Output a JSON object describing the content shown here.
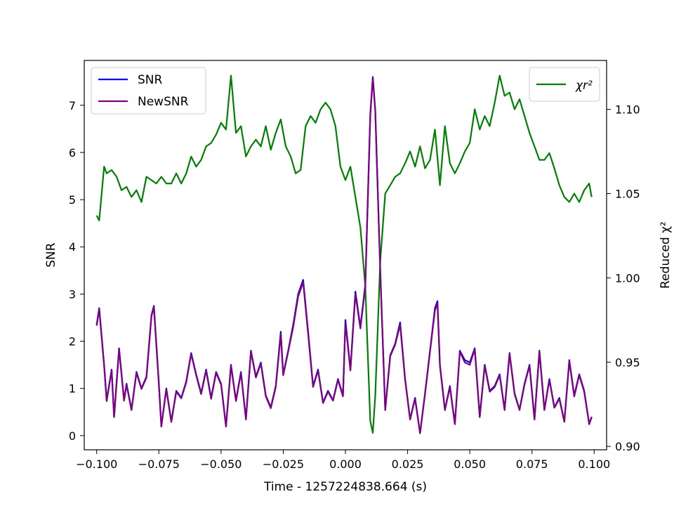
{
  "chart_data": {
    "type": "line",
    "xlabel": "Time - 1257224838.664 (s)",
    "ylabel": "SNR",
    "y2label": "Reduced χ²",
    "xlim": [
      -0.105,
      0.105
    ],
    "ylim": [
      -0.3,
      7.95
    ],
    "y2lim": [
      0.898,
      1.129
    ],
    "x_ticks": [
      -0.1,
      -0.075,
      -0.05,
      -0.025,
      0.0,
      0.025,
      0.05,
      0.075,
      0.1
    ],
    "x_tick_labels": [
      "−0.100",
      "−0.075",
      "−0.050",
      "−0.025",
      "0.000",
      "0.025",
      "0.050",
      "0.075",
      "0.100"
    ],
    "y_ticks": [
      0,
      1,
      2,
      3,
      4,
      5,
      6,
      7
    ],
    "y_tick_labels": [
      "0",
      "1",
      "2",
      "3",
      "4",
      "5",
      "6",
      "7"
    ],
    "y2_ticks": [
      0.9,
      0.95,
      1.0,
      1.05,
      1.1
    ],
    "y2_tick_labels": [
      "0.90",
      "0.95",
      "1.00",
      "1.05",
      "1.10"
    ],
    "grid": false,
    "legends": [
      {
        "position": "top-left",
        "entries": [
          {
            "label": "SNR",
            "color": "#0000ff"
          },
          {
            "label": "NewSNR",
            "color": "#800080"
          }
        ]
      },
      {
        "position": "top-right",
        "entries": [
          {
            "label": "χr²",
            "color": "#008000"
          }
        ]
      }
    ],
    "series": [
      {
        "name": "SNR",
        "axis": "left",
        "color": "#0000ff",
        "x": [
          -0.1,
          -0.099,
          -0.097,
          -0.096,
          -0.094,
          -0.093,
          -0.091,
          -0.089,
          -0.088,
          -0.086,
          -0.084,
          -0.082,
          -0.08,
          -0.078,
          -0.077,
          -0.075,
          -0.074,
          -0.072,
          -0.07,
          -0.068,
          -0.066,
          -0.064,
          -0.062,
          -0.06,
          -0.058,
          -0.056,
          -0.054,
          -0.052,
          -0.05,
          -0.048,
          -0.046,
          -0.044,
          -0.042,
          -0.04,
          -0.038,
          -0.036,
          -0.034,
          -0.032,
          -0.03,
          -0.028,
          -0.026,
          -0.025,
          -0.023,
          -0.021,
          -0.019,
          -0.017,
          -0.015,
          -0.013,
          -0.011,
          -0.009,
          -0.007,
          -0.005,
          -0.003,
          -0.001,
          0.0,
          0.002,
          0.004,
          0.006,
          0.008,
          0.01,
          0.011,
          0.012,
          0.014,
          0.016,
          0.018,
          0.02,
          0.022,
          0.024,
          0.026,
          0.028,
          0.03,
          0.032,
          0.034,
          0.036,
          0.037,
          0.038,
          0.04,
          0.042,
          0.044,
          0.046,
          0.048,
          0.05,
          0.052,
          0.054,
          0.056,
          0.058,
          0.06,
          0.062,
          0.064,
          0.066,
          0.068,
          0.07,
          0.072,
          0.074,
          0.076,
          0.078,
          0.08,
          0.082,
          0.084,
          0.086,
          0.088,
          0.09,
          0.092,
          0.094,
          0.096,
          0.098,
          0.099
        ],
        "values": [
          2.35,
          2.7,
          1.5,
          0.75,
          1.4,
          0.4,
          1.85,
          0.75,
          1.1,
          0.55,
          1.35,
          1.0,
          1.25,
          2.55,
          2.75,
          1.1,
          0.2,
          1.0,
          0.3,
          0.95,
          0.8,
          1.15,
          1.75,
          1.3,
          0.9,
          1.4,
          0.8,
          1.35,
          1.1,
          0.2,
          1.5,
          0.75,
          1.35,
          0.35,
          1.8,
          1.25,
          1.55,
          0.85,
          0.6,
          1.05,
          2.2,
          1.3,
          1.8,
          2.35,
          3.0,
          3.3,
          2.2,
          1.05,
          1.4,
          0.7,
          0.95,
          0.75,
          1.2,
          0.85,
          2.45,
          1.4,
          3.05,
          2.3,
          3.2,
          6.8,
          7.6,
          6.9,
          3.5,
          0.55,
          1.7,
          1.95,
          2.4,
          1.2,
          0.35,
          0.8,
          0.05,
          0.9,
          1.8,
          2.7,
          2.85,
          1.5,
          0.55,
          1.05,
          0.25,
          1.8,
          1.6,
          1.55,
          1.85,
          0.4,
          1.5,
          0.95,
          1.05,
          1.3,
          0.55,
          1.75,
          0.9,
          0.55,
          1.1,
          1.5,
          0.35,
          1.8,
          0.55,
          1.2,
          0.6,
          0.8,
          0.3,
          1.6,
          0.85,
          1.3,
          0.95,
          0.25,
          0.4
        ]
      },
      {
        "name": "NewSNR",
        "axis": "left",
        "color": "#800080",
        "x": [
          -0.1,
          -0.099,
          -0.097,
          -0.096,
          -0.094,
          -0.093,
          -0.091,
          -0.089,
          -0.088,
          -0.086,
          -0.084,
          -0.082,
          -0.08,
          -0.078,
          -0.077,
          -0.075,
          -0.074,
          -0.072,
          -0.07,
          -0.068,
          -0.066,
          -0.064,
          -0.062,
          -0.06,
          -0.058,
          -0.056,
          -0.054,
          -0.052,
          -0.05,
          -0.048,
          -0.046,
          -0.044,
          -0.042,
          -0.04,
          -0.038,
          -0.036,
          -0.034,
          -0.032,
          -0.03,
          -0.028,
          -0.026,
          -0.025,
          -0.023,
          -0.021,
          -0.019,
          -0.017,
          -0.015,
          -0.013,
          -0.011,
          -0.009,
          -0.007,
          -0.005,
          -0.003,
          -0.001,
          0.0,
          0.002,
          0.004,
          0.006,
          0.008,
          0.01,
          0.011,
          0.012,
          0.014,
          0.016,
          0.018,
          0.02,
          0.022,
          0.024,
          0.026,
          0.028,
          0.03,
          0.032,
          0.034,
          0.036,
          0.037,
          0.038,
          0.04,
          0.042,
          0.044,
          0.046,
          0.048,
          0.05,
          0.052,
          0.054,
          0.056,
          0.058,
          0.06,
          0.062,
          0.064,
          0.066,
          0.068,
          0.07,
          0.072,
          0.074,
          0.076,
          0.078,
          0.08,
          0.082,
          0.084,
          0.086,
          0.088,
          0.09,
          0.092,
          0.094,
          0.096,
          0.098,
          0.099
        ],
        "values": [
          2.33,
          2.68,
          1.48,
          0.73,
          1.38,
          0.39,
          1.83,
          0.74,
          1.08,
          0.54,
          1.33,
          0.99,
          1.23,
          2.53,
          2.72,
          1.08,
          0.19,
          0.98,
          0.29,
          0.93,
          0.79,
          1.13,
          1.73,
          1.28,
          0.88,
          1.38,
          0.78,
          1.33,
          1.08,
          0.19,
          1.48,
          0.73,
          1.33,
          0.34,
          1.78,
          1.23,
          1.53,
          0.83,
          0.58,
          1.03,
          2.15,
          1.28,
          1.78,
          2.3,
          2.95,
          3.25,
          2.15,
          1.03,
          1.38,
          0.69,
          0.93,
          0.74,
          1.18,
          0.83,
          2.38,
          1.38,
          3.0,
          2.27,
          3.15,
          6.78,
          7.58,
          6.88,
          3.48,
          0.54,
          1.68,
          1.93,
          2.35,
          1.18,
          0.34,
          0.78,
          0.05,
          0.88,
          1.78,
          2.65,
          2.8,
          1.48,
          0.54,
          1.03,
          0.24,
          1.78,
          1.55,
          1.5,
          1.83,
          0.39,
          1.48,
          0.93,
          1.03,
          1.28,
          0.54,
          1.73,
          0.88,
          0.54,
          1.08,
          1.48,
          0.34,
          1.78,
          0.54,
          1.18,
          0.59,
          0.78,
          0.29,
          1.58,
          0.83,
          1.28,
          0.93,
          0.24,
          0.39
        ]
      },
      {
        "name": "χr²",
        "axis": "right",
        "color": "#008000",
        "x": [
          -0.1,
          -0.099,
          -0.097,
          -0.096,
          -0.094,
          -0.092,
          -0.09,
          -0.088,
          -0.086,
          -0.084,
          -0.082,
          -0.08,
          -0.078,
          -0.076,
          -0.074,
          -0.072,
          -0.07,
          -0.068,
          -0.066,
          -0.064,
          -0.062,
          -0.06,
          -0.058,
          -0.056,
          -0.054,
          -0.052,
          -0.05,
          -0.048,
          -0.046,
          -0.044,
          -0.042,
          -0.04,
          -0.038,
          -0.036,
          -0.034,
          -0.032,
          -0.03,
          -0.028,
          -0.026,
          -0.024,
          -0.022,
          -0.02,
          -0.018,
          -0.016,
          -0.014,
          -0.012,
          -0.01,
          -0.008,
          -0.006,
          -0.004,
          -0.002,
          0.0,
          0.002,
          0.004,
          0.006,
          0.008,
          0.01,
          0.011,
          0.012,
          0.014,
          0.016,
          0.018,
          0.02,
          0.022,
          0.024,
          0.026,
          0.028,
          0.03,
          0.032,
          0.034,
          0.036,
          0.038,
          0.04,
          0.042,
          0.044,
          0.046,
          0.048,
          0.05,
          0.052,
          0.054,
          0.056,
          0.058,
          0.06,
          0.062,
          0.064,
          0.066,
          0.068,
          0.07,
          0.072,
          0.074,
          0.076,
          0.078,
          0.08,
          0.082,
          0.084,
          0.086,
          0.088,
          0.09,
          0.092,
          0.094,
          0.096,
          0.098,
          0.099
        ],
        "values": [
          1.037,
          1.034,
          1.066,
          1.062,
          1.064,
          1.06,
          1.052,
          1.054,
          1.048,
          1.052,
          1.045,
          1.06,
          1.058,
          1.056,
          1.06,
          1.056,
          1.056,
          1.062,
          1.056,
          1.062,
          1.072,
          1.066,
          1.07,
          1.078,
          1.08,
          1.085,
          1.092,
          1.088,
          1.12,
          1.086,
          1.09,
          1.072,
          1.078,
          1.082,
          1.078,
          1.09,
          1.076,
          1.086,
          1.094,
          1.078,
          1.072,
          1.062,
          1.064,
          1.09,
          1.096,
          1.092,
          1.1,
          1.104,
          1.1,
          1.09,
          1.066,
          1.058,
          1.066,
          1.048,
          1.03,
          0.995,
          0.915,
          0.908,
          0.93,
          1.01,
          1.05,
          1.055,
          1.06,
          1.062,
          1.068,
          1.075,
          1.066,
          1.078,
          1.065,
          1.07,
          1.088,
          1.055,
          1.09,
          1.068,
          1.062,
          1.068,
          1.075,
          1.08,
          1.1,
          1.088,
          1.096,
          1.09,
          1.104,
          1.12,
          1.108,
          1.11,
          1.1,
          1.106,
          1.096,
          1.086,
          1.078,
          1.07,
          1.07,
          1.074,
          1.065,
          1.055,
          1.048,
          1.045,
          1.05,
          1.045,
          1.052,
          1.056,
          1.048
        ]
      }
    ]
  }
}
